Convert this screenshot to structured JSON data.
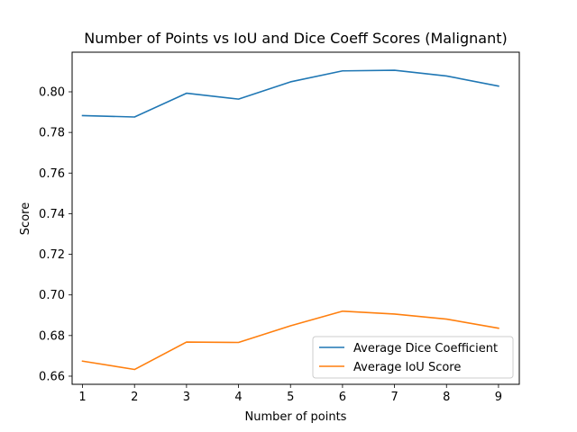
{
  "chart_data": {
    "type": "line",
    "title": "Number of Points vs IoU and Dice Coeff Scores (Malignant)",
    "xlabel": "Number of points",
    "ylabel": "Score",
    "x": [
      1,
      2,
      3,
      4,
      5,
      6,
      7,
      8,
      9
    ],
    "xlim": [
      0.8,
      9.4
    ],
    "ylim": [
      0.656,
      0.8195
    ],
    "xticks": [
      1,
      2,
      3,
      4,
      5,
      6,
      7,
      8,
      9
    ],
    "yticks": [
      0.66,
      0.68,
      0.7,
      0.72,
      0.74,
      0.76,
      0.78,
      0.8
    ],
    "grid": false,
    "legend": "lower-right",
    "series": [
      {
        "name": "Average Dice Coefficient",
        "color": "#1f77b4",
        "values": [
          0.7883,
          0.7876,
          0.7993,
          0.7964,
          0.8049,
          0.8103,
          0.8106,
          0.8078,
          0.8028
        ]
      },
      {
        "name": "Average IoU Score",
        "color": "#ff7f0e",
        "values": [
          0.6674,
          0.6633,
          0.6768,
          0.6766,
          0.6848,
          0.692,
          0.6906,
          0.6881,
          0.6836
        ]
      }
    ]
  }
}
